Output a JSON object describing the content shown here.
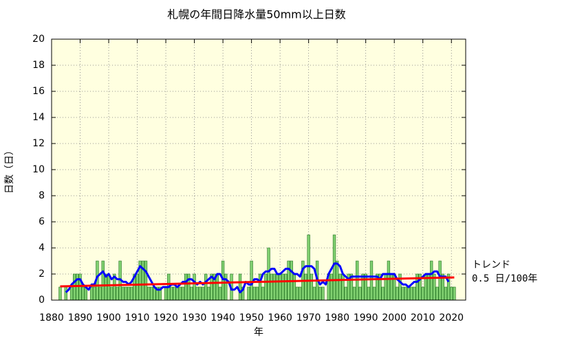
{
  "chart_data": {
    "type": "bar",
    "title": "札幌の年間日降水量50mm以上日数",
    "xlabel": "年",
    "ylabel": "日数（日）",
    "annotations": [
      "トレンド",
      "0.5 日/100年"
    ],
    "xlim": [
      1880,
      2025
    ],
    "ylim": [
      0,
      20
    ],
    "xticks": [
      1880,
      1890,
      1900,
      1910,
      1920,
      1930,
      1940,
      1950,
      1960,
      1970,
      1980,
      1990,
      2000,
      2010,
      2020
    ],
    "yticks": [
      0,
      2,
      4,
      6,
      8,
      10,
      12,
      14,
      16,
      18,
      20
    ],
    "grid": true,
    "background": "#ffffe0",
    "series": [
      {
        "type": "bar",
        "color": "#80d070",
        "edge_color": "#207020",
        "x": [
          1883,
          1884,
          1885,
          1886,
          1887,
          1888,
          1889,
          1890,
          1891,
          1892,
          1893,
          1894,
          1895,
          1896,
          1897,
          1898,
          1899,
          1900,
          1901,
          1902,
          1903,
          1904,
          1905,
          1906,
          1907,
          1908,
          1909,
          1910,
          1911,
          1912,
          1913,
          1914,
          1915,
          1916,
          1917,
          1918,
          1919,
          1920,
          1921,
          1922,
          1923,
          1924,
          1925,
          1926,
          1927,
          1928,
          1929,
          1930,
          1931,
          1932,
          1933,
          1934,
          1935,
          1936,
          1937,
          1938,
          1939,
          1940,
          1941,
          1942,
          1943,
          1944,
          1945,
          1946,
          1947,
          1948,
          1949,
          1950,
          1951,
          1952,
          1953,
          1954,
          1955,
          1956,
          1957,
          1958,
          1959,
          1960,
          1961,
          1962,
          1963,
          1964,
          1965,
          1966,
          1967,
          1968,
          1969,
          1970,
          1971,
          1972,
          1973,
          1974,
          1975,
          1976,
          1977,
          1978,
          1979,
          1980,
          1981,
          1982,
          1983,
          1984,
          1985,
          1986,
          1987,
          1988,
          1989,
          1990,
          1991,
          1992,
          1993,
          1994,
          1995,
          1996,
          1997,
          1998,
          1999,
          2000,
          2001,
          2002,
          2003,
          2004,
          2005,
          2006,
          2007,
          2008,
          2009,
          2010,
          2011,
          2012,
          2013,
          2014,
          2015,
          2016,
          2017,
          2018,
          2019,
          2020,
          2021
        ],
        "values": [
          1,
          0,
          1,
          0,
          1,
          2,
          2,
          2,
          1,
          1,
          0,
          1,
          1,
          3,
          1,
          3,
          2,
          2,
          1,
          2,
          1,
          3,
          1,
          1,
          1,
          1,
          2,
          2,
          3,
          3,
          3,
          1,
          1,
          1,
          1,
          1,
          0,
          1,
          2,
          1,
          1,
          1,
          1,
          1,
          2,
          2,
          1,
          2,
          1,
          1,
          1,
          2,
          1,
          2,
          2,
          2,
          1,
          3,
          2,
          0,
          2,
          0,
          0,
          2,
          1,
          0,
          1,
          3,
          1,
          1,
          2,
          1,
          2,
          4,
          2,
          2,
          2,
          2,
          2,
          2,
          3,
          3,
          2,
          1,
          1,
          3,
          2,
          5,
          2,
          1,
          3,
          1,
          1,
          0,
          2,
          2,
          5,
          3,
          2,
          2,
          1,
          2,
          2,
          1,
          3,
          1,
          2,
          2,
          1,
          3,
          1,
          2,
          2,
          1,
          2,
          3,
          2,
          2,
          1,
          2,
          1,
          1,
          1,
          1,
          1,
          2,
          2,
          1,
          2,
          2,
          3,
          2,
          1,
          3,
          2,
          1,
          2,
          1,
          1
        ]
      },
      {
        "type": "line",
        "color": "#0000ff",
        "width": 3,
        "x": [
          1885,
          1886,
          1887,
          1888,
          1889,
          1890,
          1891,
          1892,
          1893,
          1894,
          1895,
          1896,
          1897,
          1898,
          1899,
          1900,
          1901,
          1902,
          1903,
          1904,
          1905,
          1906,
          1907,
          1908,
          1909,
          1910,
          1911,
          1912,
          1913,
          1914,
          1915,
          1916,
          1917,
          1918,
          1919,
          1920,
          1921,
          1922,
          1923,
          1924,
          1925,
          1926,
          1927,
          1928,
          1929,
          1930,
          1931,
          1932,
          1933,
          1934,
          1935,
          1936,
          1937,
          1938,
          1939,
          1940,
          1941,
          1942,
          1943,
          1944,
          1945,
          1946,
          1947,
          1948,
          1949,
          1950,
          1951,
          1952,
          1953,
          1954,
          1955,
          1956,
          1957,
          1958,
          1959,
          1960,
          1961,
          1962,
          1963,
          1964,
          1965,
          1966,
          1967,
          1968,
          1969,
          1970,
          1971,
          1972,
          1973,
          1974,
          1975,
          1976,
          1977,
          1978,
          1979,
          1980,
          1981,
          1982,
          1983,
          1984,
          1985,
          1986,
          1987,
          1988,
          1989,
          1990,
          1991,
          1992,
          1993,
          1994,
          1995,
          1996,
          1997,
          1998,
          1999,
          2000,
          2001,
          2002,
          2003,
          2004,
          2005,
          2006,
          2007,
          2008,
          2009,
          2010,
          2011,
          2012,
          2013,
          2014,
          2015,
          2016,
          2017,
          2018,
          2019
        ],
        "values": [
          0.6,
          0.8,
          1.2,
          1.4,
          1.6,
          1.6,
          1.2,
          1.0,
          0.8,
          1.2,
          1.2,
          1.8,
          2.0,
          2.2,
          1.8,
          2.0,
          1.6,
          1.8,
          1.6,
          1.6,
          1.4,
          1.4,
          1.2,
          1.4,
          1.8,
          2.2,
          2.6,
          2.4,
          2.2,
          1.8,
          1.4,
          1.0,
          0.8,
          0.8,
          1.0,
          1.0,
          1.0,
          1.2,
          1.2,
          1.0,
          1.2,
          1.4,
          1.4,
          1.6,
          1.6,
          1.4,
          1.2,
          1.4,
          1.2,
          1.4,
          1.6,
          1.8,
          1.6,
          2.0,
          2.0,
          1.6,
          1.6,
          1.4,
          0.8,
          0.8,
          1.0,
          0.6,
          0.8,
          1.4,
          1.2,
          1.2,
          1.6,
          1.6,
          1.4,
          2.0,
          2.2,
          2.2,
          2.4,
          2.4,
          2.0,
          2.0,
          2.2,
          2.4,
          2.4,
          2.2,
          2.0,
          2.0,
          1.8,
          2.4,
          2.6,
          2.6,
          2.6,
          2.4,
          1.6,
          1.2,
          1.4,
          1.2,
          2.0,
          2.4,
          2.8,
          2.8,
          2.6,
          2.0,
          1.8,
          1.6,
          1.8,
          1.8,
          1.8,
          1.8,
          1.8,
          1.8,
          1.8,
          1.8,
          1.8,
          1.8,
          1.6,
          2.0,
          2.0,
          2.0,
          2.0,
          2.0,
          1.6,
          1.4,
          1.2,
          1.2,
          1.0,
          1.2,
          1.4,
          1.4,
          1.6,
          1.8,
          2.0,
          2.0,
          2.0,
          2.2,
          2.2,
          1.8,
          1.8,
          1.8,
          1.4
        ]
      },
      {
        "type": "line",
        "color": "#ff0000",
        "width": 3,
        "x": [
          1883,
          2021
        ],
        "values": [
          1.05,
          1.74
        ]
      }
    ]
  }
}
